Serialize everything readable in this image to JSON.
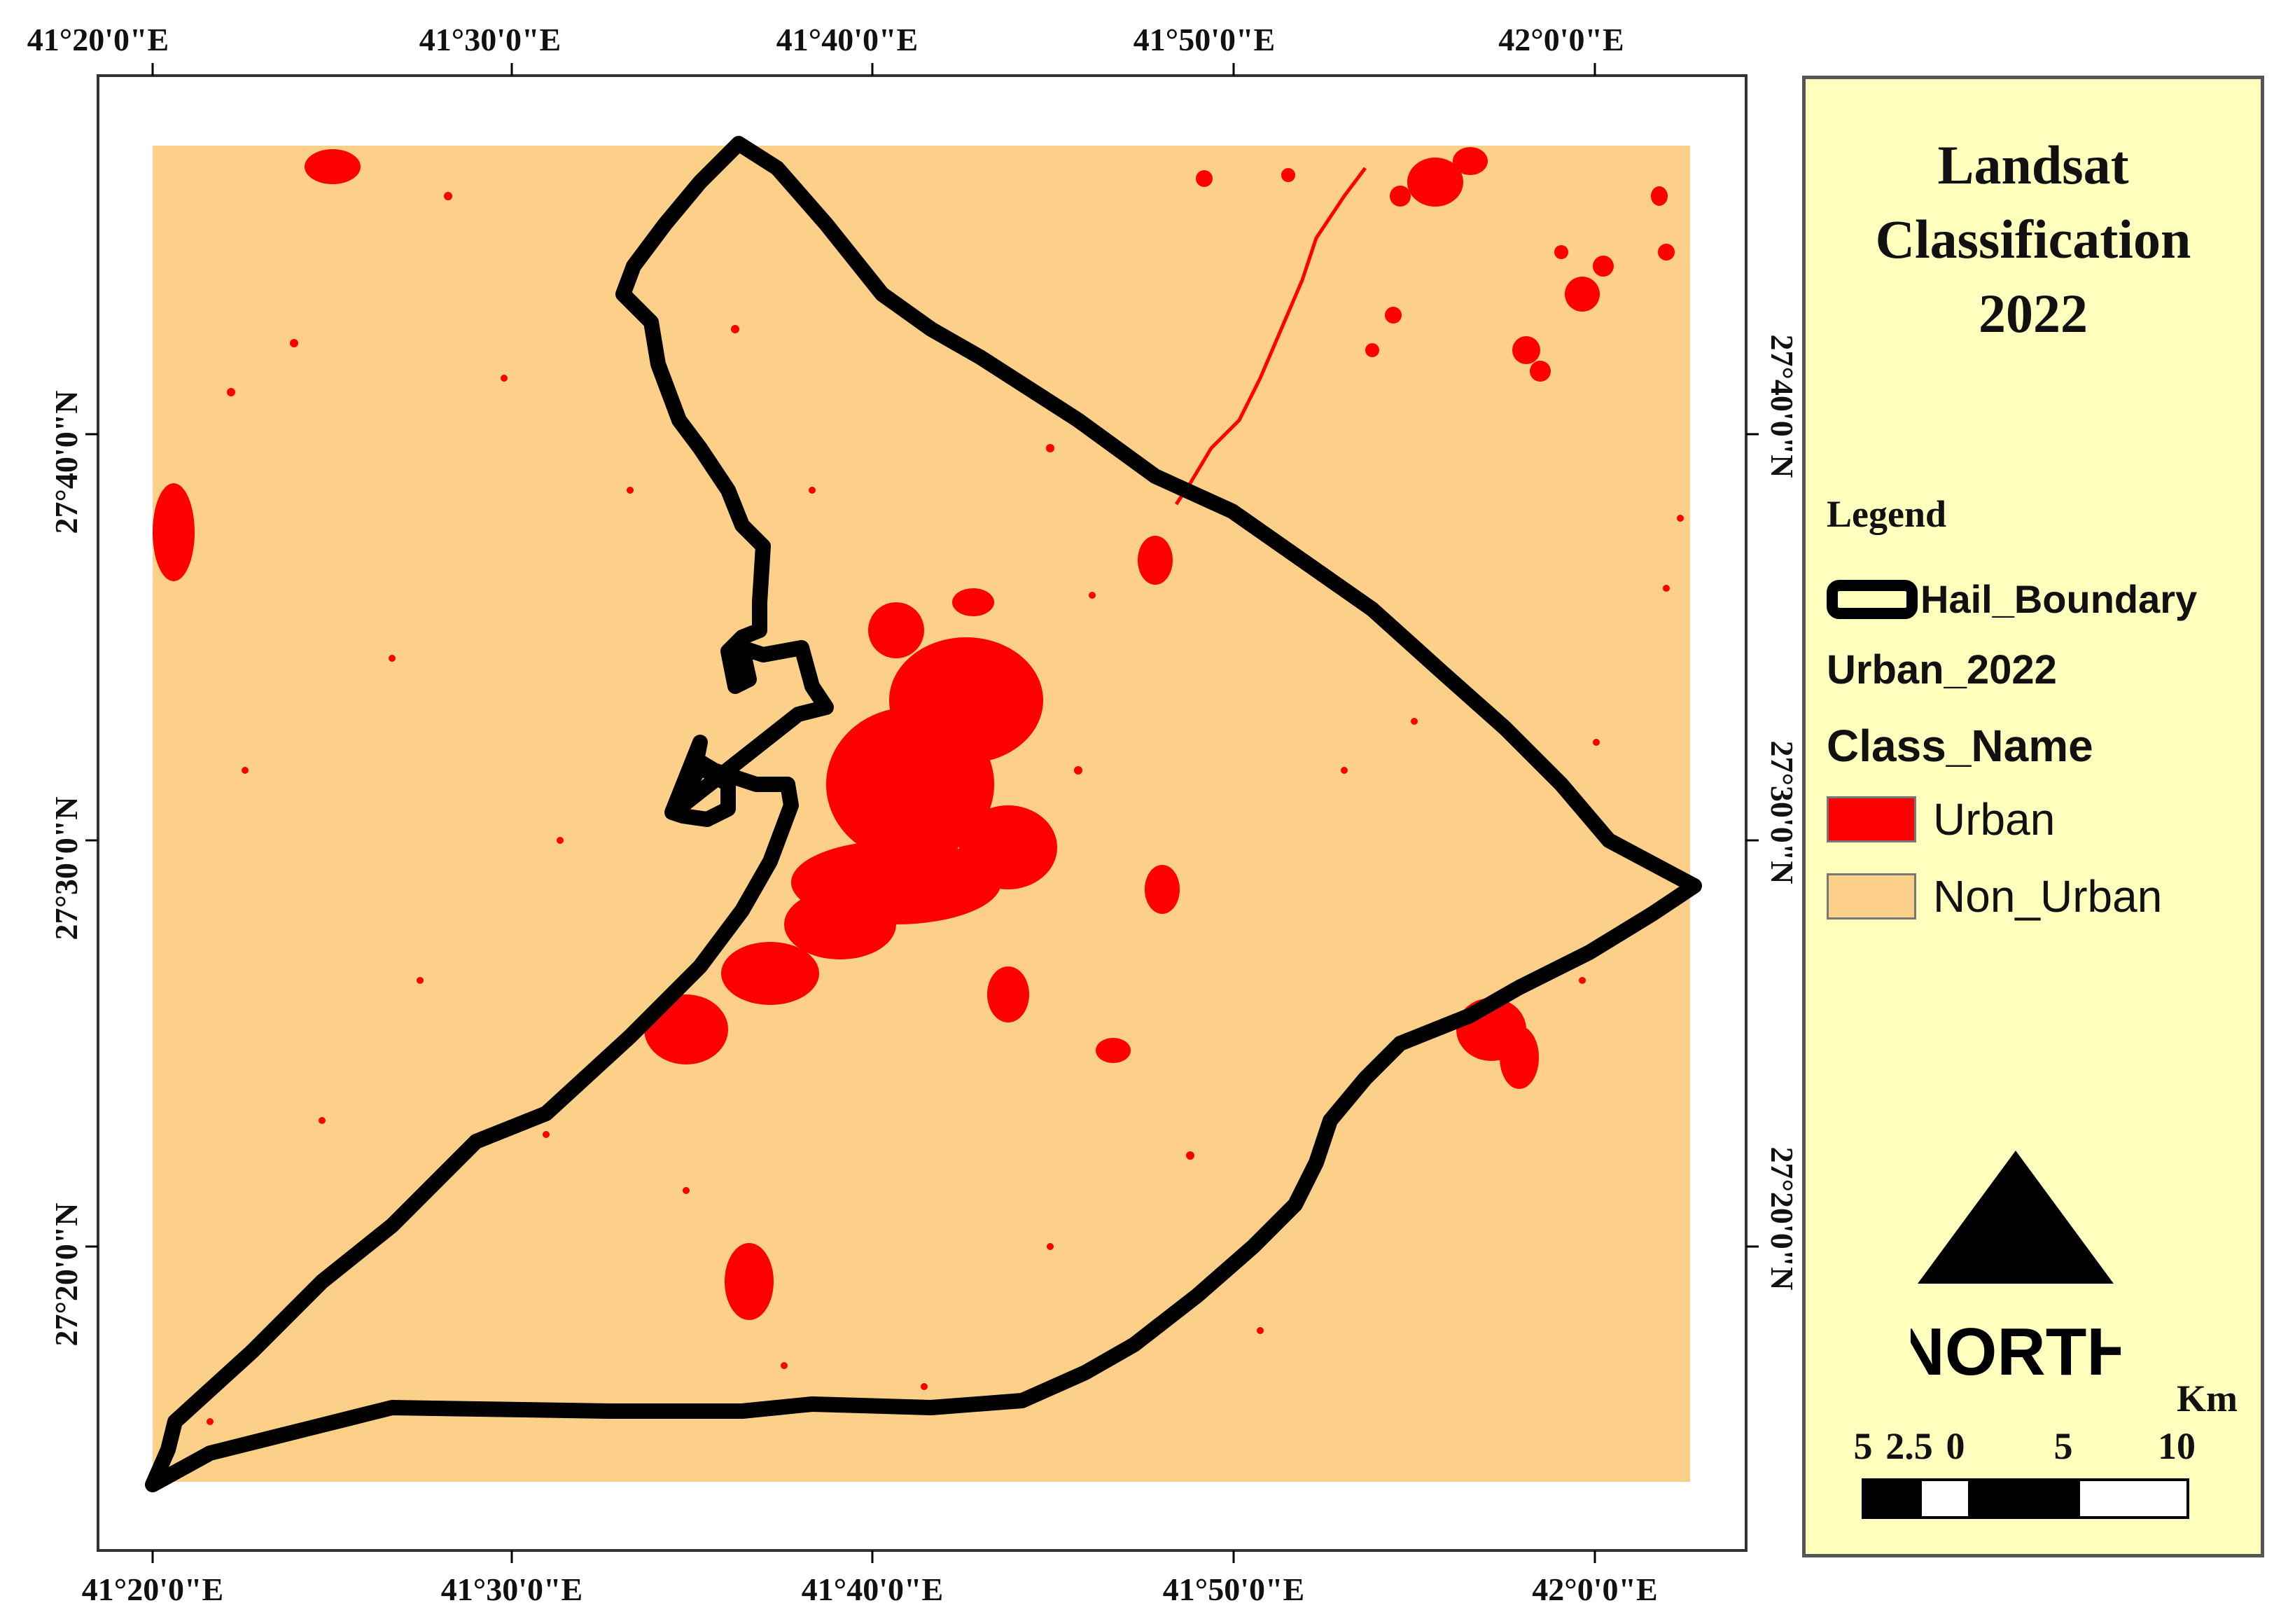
{
  "map": {
    "colors": {
      "urban": "#ff0000",
      "non_urban": "#fdd08a",
      "boundary": "#000000",
      "legend_bg": "#ffffbe"
    },
    "top_ticks": [
      "41°20'0\"E",
      "41°30'0\"E",
      "41°40'0\"E",
      "41°50'0\"E",
      "42°0'0\"E"
    ],
    "bottom_ticks": [
      "41°20'0\"E",
      "41°30'0\"E",
      "41°40'0\"E",
      "41°50'0\"E",
      "42°0'0\"E"
    ],
    "left_ticks": [
      "27°40'0\"N",
      "27°30'0\"N",
      "27°20'0\"N"
    ],
    "right_ticks": [
      "27°40'0\"N",
      "27°30'0\"N",
      "27°20'0\"N"
    ]
  },
  "legend": {
    "title_lines": [
      "Landsat",
      "Classification",
      "2022"
    ],
    "heading": "Legend",
    "boundary_label": "Hail_Boundary",
    "layer_label": "Urban_2022",
    "field_label": "Class_Name",
    "classes": [
      {
        "label": "Urban",
        "color": "#ff0000"
      },
      {
        "label": "Non_Urban",
        "color": "#fdd08a"
      }
    ],
    "north_label": "NORTH",
    "scale_unit": "Km",
    "scale_ticks": [
      "5",
      "2.5",
      "0",
      "5",
      "10"
    ]
  }
}
